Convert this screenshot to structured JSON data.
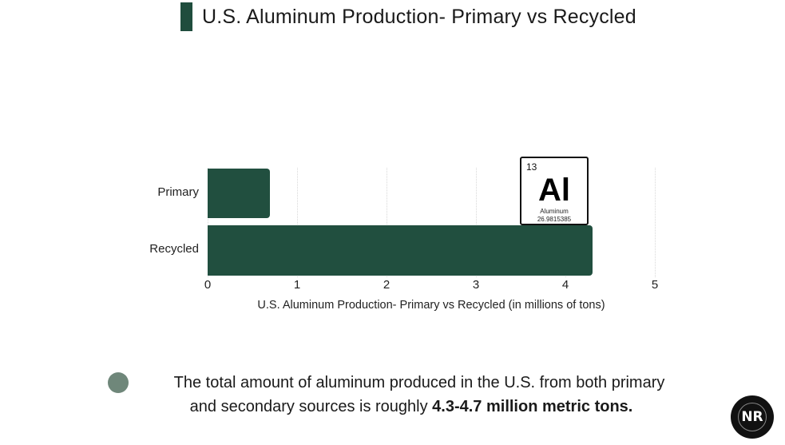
{
  "title": "U.S. Aluminum Production- Primary vs Recycled",
  "colors": {
    "bar": "#214f3f",
    "title_accent": "#1f4d3d",
    "note_dot": "#6f877a"
  },
  "chart_data": {
    "type": "bar",
    "orientation": "horizontal",
    "title": "U.S. Aluminum Production- Primary vs Recycled",
    "categories": [
      "Primary",
      "Recycled"
    ],
    "values": [
      0.7,
      4.3
    ],
    "xlabel": "U.S. Aluminum Production- Primary vs Recycled (in millions of tons)",
    "ylabel": "",
    "xlim": [
      0,
      5
    ],
    "xticks": [
      "0",
      "1",
      "2",
      "3",
      "4",
      "5"
    ],
    "grid": "vertical dotted",
    "legend": "none"
  },
  "element_card": {
    "number": "13",
    "symbol": "Al",
    "name": "Aluminum",
    "mass": "26.9815385"
  },
  "note": {
    "line1": "The total amount of aluminum produced in the U.S. from both primary",
    "line2_prefix": "and secondary sources is roughly ",
    "line2_bold": "4.3-4.7 million metric tons."
  },
  "logo": {
    "text": "NR"
  }
}
